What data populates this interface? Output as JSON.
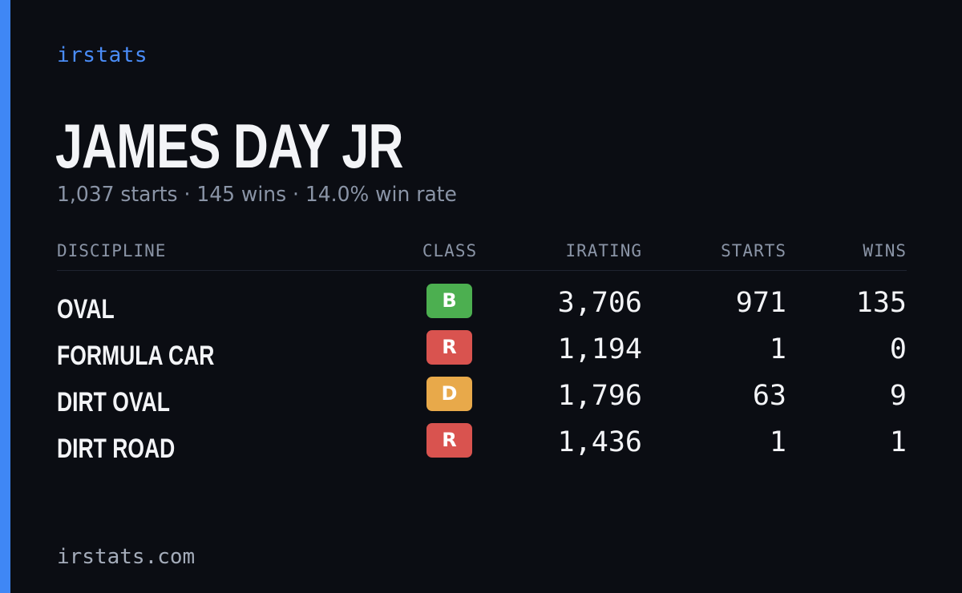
{
  "brand": "irstats",
  "driver": {
    "name": "JAMES DAY JR",
    "summary": "1,037 starts · 145 wins · 14.0% win rate"
  },
  "table": {
    "headers": {
      "discipline": "DISCIPLINE",
      "class": "CLASS",
      "irating": "IRATING",
      "starts": "STARTS",
      "wins": "WINS"
    },
    "rows": [
      {
        "discipline": "OVAL",
        "class": "B",
        "class_color": "#4caf50",
        "irating": "3,706",
        "starts": "971",
        "wins": "135"
      },
      {
        "discipline": "FORMULA CAR",
        "class": "R",
        "class_color": "#d9534f",
        "irating": "1,194",
        "starts": "1",
        "wins": "0"
      },
      {
        "discipline": "DIRT OVAL",
        "class": "D",
        "class_color": "#e8a94a",
        "irating": "1,796",
        "starts": "63",
        "wins": "9"
      },
      {
        "discipline": "DIRT ROAD",
        "class": "R",
        "class_color": "#d9534f",
        "irating": "1,436",
        "starts": "1",
        "wins": "1"
      }
    ]
  },
  "footer": "irstats.com",
  "colors": {
    "accent": "#3f87f5",
    "background": "#0b0d13"
  }
}
